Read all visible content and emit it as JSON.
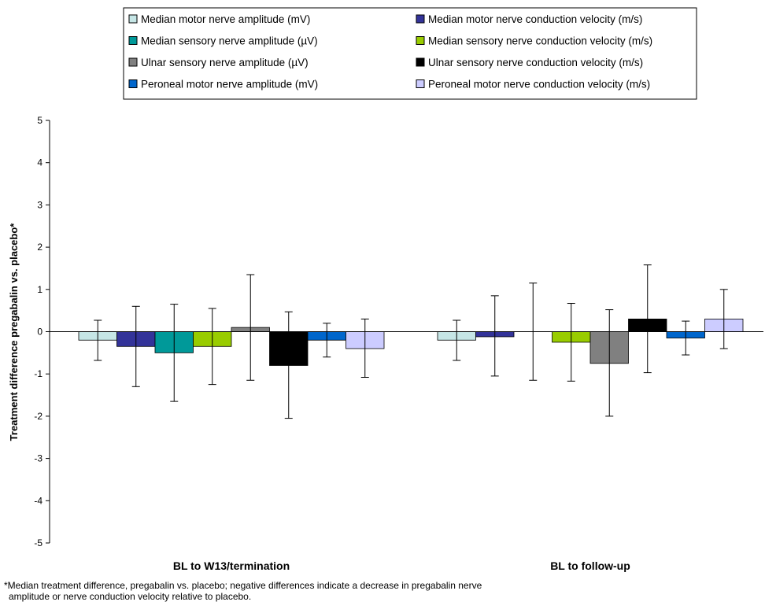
{
  "chart_data": {
    "type": "bar",
    "ylabel": "Treatment difference pregabalin vs. placebo*",
    "ylim": [
      -5,
      5
    ],
    "yticks": [
      5,
      4,
      3,
      2,
      1,
      0,
      -1,
      -2,
      -3,
      -4,
      -5
    ],
    "categories": [
      "BL to W13/termination",
      "BL to follow-up"
    ],
    "series": [
      {
        "name": "Median motor nerve amplitude (mV)",
        "color": "#c6e6e6",
        "values": [
          -0.2,
          -0.2
        ],
        "err_high": [
          0.27,
          0.27
        ],
        "err_low": [
          -0.68,
          -0.68
        ]
      },
      {
        "name": "Median motor nerve conduction velocity (m/s)",
        "color": "#333399",
        "values": [
          -0.35,
          -0.12
        ],
        "err_high": [
          0.6,
          0.85
        ],
        "err_low": [
          -1.3,
          -1.05
        ]
      },
      {
        "name": "Median sensory nerve amplitude (µV)",
        "color": "#009999",
        "values": [
          -0.5,
          0.0
        ],
        "err_high": [
          0.65,
          1.15
        ],
        "err_low": [
          -1.65,
          -1.15
        ]
      },
      {
        "name": "Median sensory nerve conduction velocity (m/s)",
        "color": "#99cc00",
        "values": [
          -0.35,
          -0.25
        ],
        "err_high": [
          0.55,
          0.67
        ],
        "err_low": [
          -1.25,
          -1.17
        ]
      },
      {
        "name": "Ulnar sensory nerve amplitude (µV)",
        "color": "#808080",
        "values": [
          0.1,
          -0.75
        ],
        "err_high": [
          1.35,
          0.52
        ],
        "err_low": [
          -1.15,
          -2.0
        ]
      },
      {
        "name": "Ulnar sensory nerve conduction velocity (m/s)",
        "color": "#000000",
        "values": [
          -0.8,
          0.3
        ],
        "err_high": [
          0.47,
          1.58
        ],
        "err_low": [
          -2.05,
          -0.97
        ]
      },
      {
        "name": "Peroneal motor nerve amplitude (mV)",
        "color": "#0066cc",
        "values": [
          -0.2,
          -0.15
        ],
        "err_high": [
          0.2,
          0.25
        ],
        "err_low": [
          -0.6,
          -0.55
        ]
      },
      {
        "name": "Peroneal motor nerve conduction velocity (m/s)",
        "color": "#ccccff",
        "values": [
          -0.4,
          0.3
        ],
        "err_high": [
          0.3,
          1.0
        ],
        "err_low": [
          -1.08,
          -0.4
        ]
      }
    ],
    "legend_position": "top",
    "grid": false
  },
  "footnote": {
    "line1": "*Median treatment difference, pregabalin vs. placebo; negative differences indicate a decrease in pregabalin nerve",
    "line2": "amplitude or nerve conduction velocity relative to placebo."
  }
}
